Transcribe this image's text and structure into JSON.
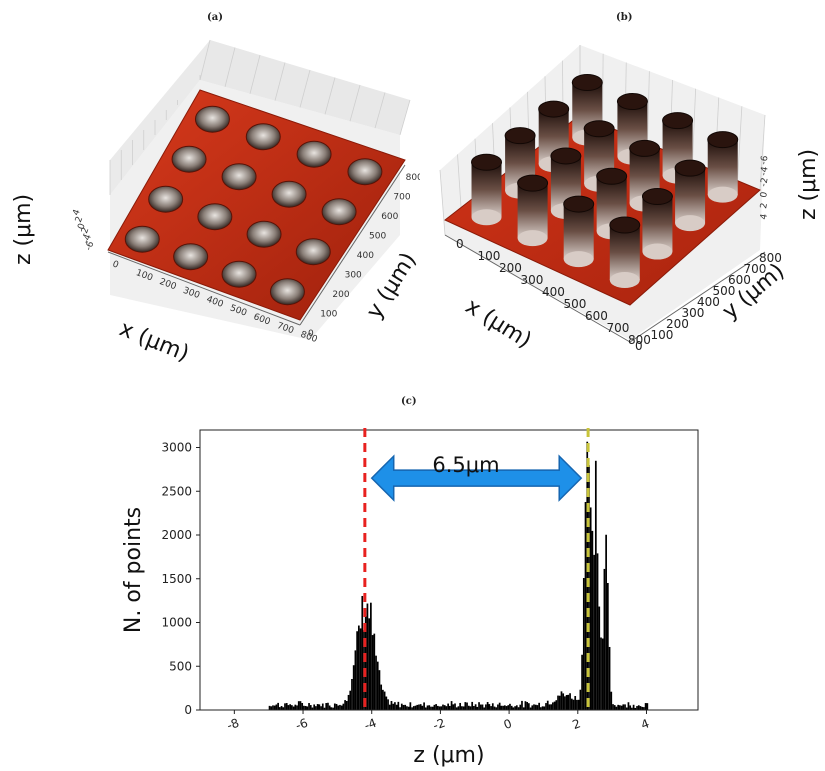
{
  "panels": {
    "a": {
      "label": "(a)",
      "x_axis_label": "x (μm)",
      "y_axis_label": "y (μm)",
      "z_axis_label": "z (μm)",
      "x_ticks": [
        "0",
        "100",
        "200",
        "300",
        "400",
        "500",
        "600",
        "700",
        "800"
      ],
      "y_ticks": [
        "0",
        "100",
        "200",
        "300",
        "400",
        "500",
        "600",
        "700",
        "800"
      ],
      "z_ticks": [
        "4",
        "2",
        "0",
        "-2",
        "-4",
        "-6"
      ],
      "surface_color": "#c62b12",
      "hole_grid": "4x4"
    },
    "b": {
      "label": "(b)",
      "x_axis_label": "x (μm)",
      "y_axis_label": "y (μm)",
      "z_axis_label": "z (μm)",
      "x_ticks": [
        "0",
        "100",
        "200",
        "300",
        "400",
        "500",
        "600",
        "700",
        "800"
      ],
      "y_ticks": [
        "0",
        "100",
        "200",
        "300",
        "400",
        "500",
        "600",
        "700",
        "800"
      ],
      "z_ticks": [
        "-6",
        "-4",
        "-2",
        "0",
        "2",
        "4"
      ],
      "surface_color": "#c62b12",
      "pillar_grid": "4x4"
    },
    "c": {
      "label": "(c)",
      "annotation": "6.5μm"
    }
  },
  "chart_data": [
    {
      "type": "bar",
      "panel": "c",
      "title": "",
      "xlabel": "z (μm)",
      "ylabel": "N. of points",
      "xlim": [
        -9,
        5.5
      ],
      "ylim": [
        0,
        3200
      ],
      "x_ticks": [
        "-8",
        "-6",
        "-4",
        "-2",
        "0",
        "2",
        "4"
      ],
      "y_ticks": [
        "0",
        "500",
        "1000",
        "1500",
        "2000",
        "2500",
        "3000"
      ],
      "bin_width": 0.05,
      "peaks": [
        {
          "center": -4.2,
          "height": 1150,
          "width": 0.35
        },
        {
          "center": 2.25,
          "height": 3000,
          "width": 0.12
        },
        {
          "center": 2.5,
          "height": 2350,
          "width": 0.12
        },
        {
          "center": 2.8,
          "height": 1700,
          "width": 0.1
        },
        {
          "center": 1.6,
          "height": 120,
          "width": 0.4
        }
      ],
      "background_level": 60,
      "background_range": [
        -7,
        4
      ],
      "markers": [
        {
          "x": -4.2,
          "color": "#e8211f",
          "style": "dashed"
        },
        {
          "x": 2.3,
          "color": "#c8c43a",
          "style": "dashed"
        }
      ],
      "arrow": {
        "from": -4.0,
        "to": 2.1,
        "y": 2650,
        "color": "#1e90e8",
        "label": "6.5μm"
      },
      "bar_color": "#000000"
    }
  ]
}
